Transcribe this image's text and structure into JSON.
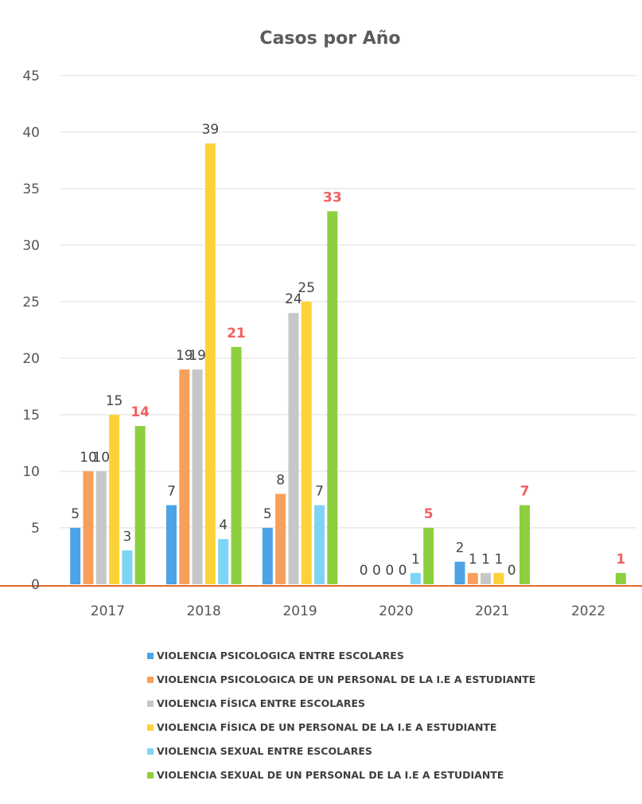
{
  "chart_data": {
    "type": "bar",
    "title": "Casos por Año",
    "categories": [
      "2017",
      "2018",
      "2019",
      "2020",
      "2021",
      "2022"
    ],
    "ylim": [
      0,
      45
    ],
    "yticks": [
      0,
      5,
      10,
      15,
      20,
      25,
      30,
      35,
      40,
      45
    ],
    "grid": true,
    "legend_position": "bottom",
    "series": [
      {
        "name": "VIOLENCIA PSICOLOGICA ENTRE ESCOLARES",
        "color": "#4da3e6",
        "values": [
          5,
          7,
          5,
          0,
          2,
          null
        ],
        "labels": [
          "5",
          "7",
          "5",
          "0",
          "2",
          ""
        ]
      },
      {
        "name": "VIOLENCIA PSICOLOGICA DE UN PERSONAL DE LA I.E A ESTUDIANTE",
        "color": "#f7a05c",
        "values": [
          10,
          19,
          8,
          0,
          1,
          null
        ],
        "labels": [
          "10",
          "19",
          "8",
          "0",
          "1",
          ""
        ]
      },
      {
        "name": "VIOLENCIA FÍSICA ENTRE ESCOLARES",
        "color": "#c7c7c7",
        "values": [
          10,
          19,
          24,
          0,
          1,
          null
        ],
        "labels": [
          "10",
          "19",
          "24",
          "0",
          "1",
          ""
        ]
      },
      {
        "name": "VIOLENCIA FÍSICA DE UN PERSONAL DE LA I.E A ESTUDIANTE",
        "color": "#fcd23a",
        "values": [
          15,
          39,
          25,
          0,
          1,
          null
        ],
        "labels": [
          "15",
          "39",
          "25",
          "0",
          "1",
          ""
        ]
      },
      {
        "name": "VIOLENCIA SEXUAL ENTRE ESCOLARES",
        "color": "#7fd4f5",
        "values": [
          3,
          4,
          7,
          1,
          0,
          null
        ],
        "labels": [
          "3",
          "4",
          "7",
          "1",
          "0",
          ""
        ]
      },
      {
        "name": "VIOLENCIA SEXUAL DE UN PERSONAL DE LA I.E A ESTUDIANTE",
        "color": "#8ccf3f",
        "values": [
          14,
          21,
          33,
          5,
          7,
          1
        ],
        "labels": [
          "14",
          "21",
          "33",
          "5",
          "7",
          "1"
        ],
        "label_color": "#f06060"
      }
    ]
  }
}
